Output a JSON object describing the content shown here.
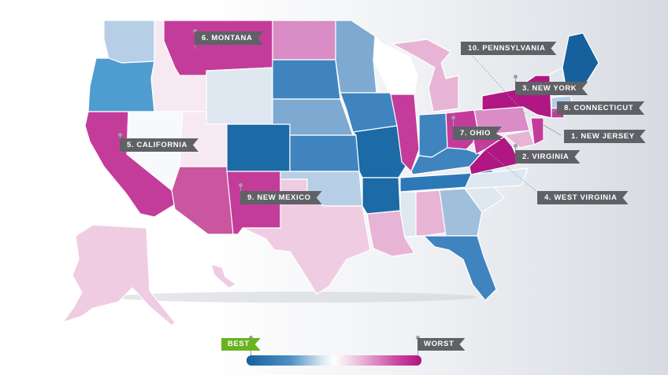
{
  "callouts": {
    "montana": "6. MONTANA",
    "pennsylvania": "10. PENNSYLVANIA",
    "new_york": "3. NEW YORK",
    "connecticut": "8. CONNECTICUT",
    "new_jersey": "1. NEW JERSEY",
    "ohio": "7. OHIO",
    "virginia": "2. VIRGINIA",
    "california": "5. CALIFORNIA",
    "new_mexico": "9. NEW MEXICO",
    "west_virginia": "4. WEST VIRGINIA"
  },
  "legend": {
    "best_label": "BEST",
    "worst_label": "WORST",
    "best_color": "#69b220",
    "worst_color": "#5f6166",
    "scale_colors": [
      "#16609d",
      "#4f8fc4",
      "#d7e6f1",
      "#ffffff",
      "#e9bad8",
      "#cc4aa6",
      "#b0147f"
    ]
  },
  "colors": {
    "dark_blue": "#1c6aa6",
    "blue": "#3f84bf",
    "mid_blue": "#7ea9d0",
    "light_blue": "#b7cfe6",
    "pale_blue": "#dfe8f1",
    "white": "#ffffff",
    "pale_pink": "#f3dcea",
    "light_pink": "#e8b4d5",
    "pink": "#d98cc5",
    "magenta": "#c43c9a",
    "dark_magenta": "#b01782"
  }
}
